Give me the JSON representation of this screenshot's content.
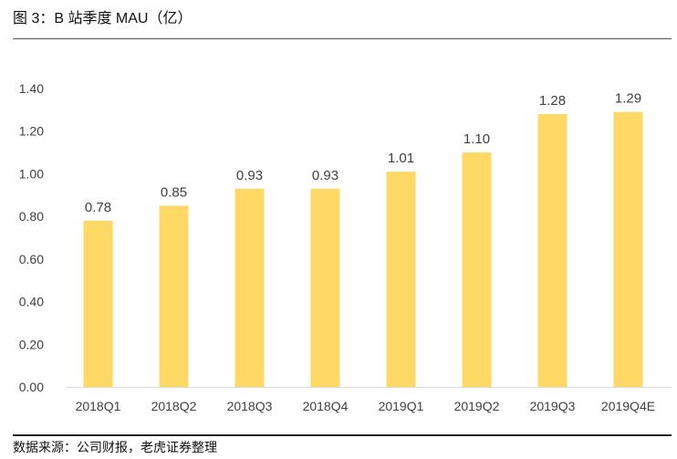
{
  "figure": {
    "title": "图 3：B 站季度 MAU（亿）",
    "source": "数据来源：公司财报，老虎证券整理"
  },
  "colors": {
    "bar": "#FFD966",
    "axis": "#D9D9D9",
    "text": "#404040"
  },
  "chart_data": {
    "type": "bar",
    "title": "图 3：B 站季度 MAU（亿）",
    "categories": [
      "2018Q1",
      "2018Q2",
      "2018Q3",
      "2018Q4",
      "2019Q1",
      "2019Q2",
      "2019Q3",
      "2019Q4E"
    ],
    "values": [
      0.78,
      0.85,
      0.93,
      0.93,
      1.01,
      1.1,
      1.28,
      1.29
    ],
    "data_labels": [
      "0.78",
      "0.85",
      "0.93",
      "0.93",
      "1.01",
      "1.10",
      "1.28",
      "1.29"
    ],
    "xlabel": "",
    "ylabel": "",
    "ylim": [
      0,
      1.4
    ],
    "yticks": [
      "0.00",
      "0.20",
      "0.40",
      "0.60",
      "0.80",
      "1.00",
      "1.20",
      "1.40"
    ],
    "grid": false,
    "legend": "none"
  }
}
